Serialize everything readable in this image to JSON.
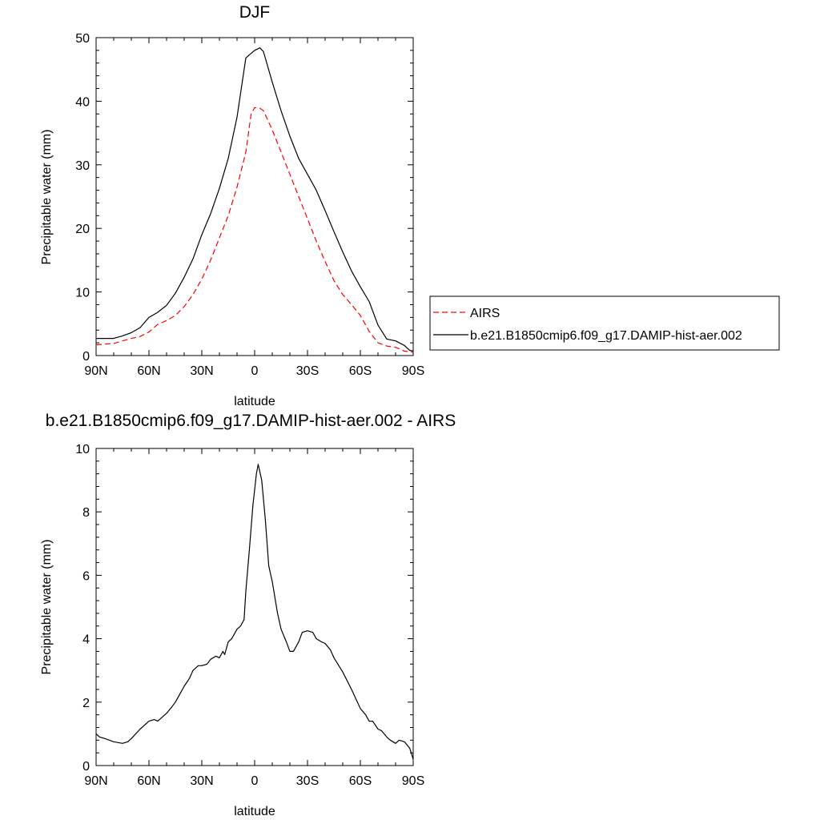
{
  "chart_data": [
    {
      "type": "line",
      "title": "DJF",
      "xlabel": "latitude",
      "ylabel": "Precipitable water (mm)",
      "xlim": [
        -90,
        90
      ],
      "ylim": [
        0,
        50
      ],
      "x_ticks": [
        -90,
        -60,
        -30,
        0,
        30,
        60,
        90
      ],
      "x_tick_labels": [
        "90N",
        "60N",
        "30N",
        "0",
        "30S",
        "60S",
        "90S"
      ],
      "y_ticks": [
        0,
        10,
        20,
        30,
        40,
        50
      ],
      "y_tick_labels": [
        "0",
        "10",
        "20",
        "30",
        "40",
        "50"
      ],
      "legend_position": "right",
      "series": [
        {
          "name": "AIRS",
          "color": "#ff0000",
          "style": "dashed",
          "x": [
            -90,
            -85,
            -80,
            -75,
            -70,
            -65,
            -60,
            -55,
            -50,
            -45,
            -40,
            -35,
            -30,
            -25,
            -20,
            -15,
            -10,
            -5,
            -2,
            0,
            3,
            5,
            10,
            15,
            20,
            25,
            30,
            35,
            40,
            45,
            50,
            55,
            60,
            65,
            70,
            75,
            80,
            85,
            90
          ],
          "y": [
            1.7,
            1.8,
            1.9,
            2.3,
            2.7,
            3.0,
            3.7,
            4.9,
            5.5,
            6.3,
            7.7,
            9.6,
            12.0,
            15.0,
            18.5,
            22.0,
            26.5,
            32.0,
            38.0,
            39.0,
            38.9,
            38.5,
            35.5,
            32.0,
            28.5,
            25.0,
            21.5,
            18.0,
            14.8,
            11.8,
            9.6,
            8.0,
            6.3,
            3.8,
            2.0,
            1.5,
            1.3,
            0.7,
            0.5
          ]
        },
        {
          "name": "b.e21.B1850cmip6.f09_g17.DAMIP-hist-aer.002",
          "color": "#000000",
          "style": "solid",
          "x": [
            -90,
            -85,
            -80,
            -75,
            -70,
            -65,
            -60,
            -55,
            -50,
            -45,
            -40,
            -35,
            -30,
            -25,
            -20,
            -15,
            -10,
            -5,
            -3,
            0,
            3,
            5,
            10,
            15,
            20,
            25,
            30,
            35,
            40,
            45,
            50,
            55,
            60,
            65,
            70,
            75,
            80,
            85,
            88,
            90
          ],
          "y": [
            2.7,
            2.7,
            2.7,
            3.1,
            3.6,
            4.4,
            6.0,
            6.8,
            7.9,
            9.8,
            12.3,
            15.2,
            19.0,
            22.3,
            26.3,
            31.0,
            37.5,
            46.8,
            47.3,
            48.0,
            48.4,
            47.8,
            43.0,
            38.5,
            34.5,
            31.0,
            28.5,
            26.0,
            22.8,
            19.5,
            16.3,
            13.3,
            10.8,
            8.5,
            4.8,
            2.6,
            2.3,
            1.6,
            0.8,
            0.7
          ]
        }
      ]
    },
    {
      "type": "line",
      "title": "b.e21.B1850cmip6.f09_g17.DAMIP-hist-aer.002 - AIRS",
      "xlabel": "latitude",
      "ylabel": "Precipitable water (mm)",
      "xlim": [
        -90,
        90
      ],
      "ylim": [
        0,
        10
      ],
      "x_ticks": [
        -90,
        -60,
        -30,
        0,
        30,
        60,
        90
      ],
      "x_tick_labels": [
        "90N",
        "60N",
        "30N",
        "0",
        "30S",
        "60S",
        "90S"
      ],
      "y_ticks": [
        0,
        2,
        4,
        6,
        8,
        10
      ],
      "y_tick_labels": [
        "0",
        "2",
        "4",
        "6",
        "8",
        "10"
      ],
      "series": [
        {
          "color": "#000000",
          "style": "solid",
          "x": [
            -90,
            -88,
            -85,
            -80,
            -75,
            -72,
            -70,
            -65,
            -60,
            -57,
            -55,
            -50,
            -47,
            -45,
            -42,
            -40,
            -37,
            -35,
            -32,
            -30,
            -27,
            -25,
            -22,
            -20,
            -18,
            -17,
            -15,
            -13,
            -10,
            -8,
            -6,
            -5,
            -3,
            -1,
            1,
            2,
            4,
            6,
            8,
            10,
            13,
            15,
            18,
            20,
            22,
            25,
            27,
            30,
            33,
            35,
            38,
            40,
            43,
            45,
            50,
            55,
            60,
            63,
            65,
            67,
            70,
            72,
            75,
            77,
            80,
            82,
            85,
            88,
            90
          ],
          "y": [
            1.0,
            0.9,
            0.85,
            0.75,
            0.7,
            0.75,
            0.85,
            1.15,
            1.4,
            1.45,
            1.4,
            1.65,
            1.85,
            2.0,
            2.3,
            2.5,
            2.75,
            3.0,
            3.15,
            3.15,
            3.2,
            3.35,
            3.45,
            3.4,
            3.6,
            3.5,
            3.9,
            4.0,
            4.3,
            4.4,
            4.6,
            5.5,
            6.8,
            8.2,
            9.2,
            9.5,
            9.0,
            7.8,
            6.3,
            5.8,
            4.8,
            4.3,
            3.9,
            3.6,
            3.6,
            3.9,
            4.2,
            4.25,
            4.2,
            4.0,
            3.9,
            3.85,
            3.65,
            3.4,
            2.95,
            2.4,
            1.8,
            1.6,
            1.4,
            1.4,
            1.15,
            1.1,
            0.9,
            0.8,
            0.7,
            0.8,
            0.75,
            0.55,
            0.2
          ]
        }
      ]
    }
  ]
}
